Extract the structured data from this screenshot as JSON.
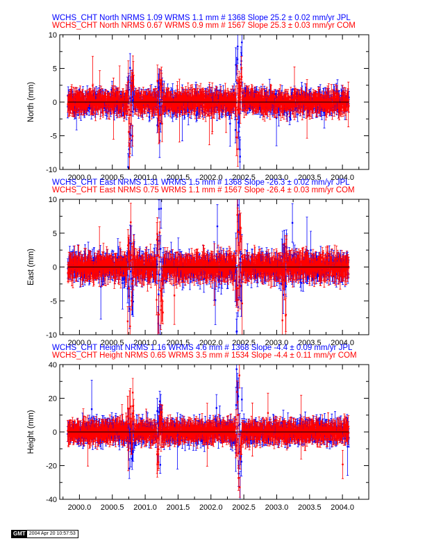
{
  "colors": {
    "jpl": "#0000ff",
    "com": "#ff0000",
    "axis": "#000000"
  },
  "footer": {
    "logo": "GMT",
    "timestamp": "2004 Apr 20 10:57:53"
  },
  "chart_data": [
    {
      "type": "scatter",
      "component": "North",
      "titles": [
        {
          "text": "WCHS_CHT North NRMS 1.09 WRMS  1.1 mm # 1368 Slope   25.2 ±  0.02 mm/yr JPL",
          "color": "#0000ff"
        },
        {
          "text": "WCHS_CHT North NRMS 0.67 WRMS  0.9 mm # 1567 Slope   25.3 ±  0.03 mm/yr COM",
          "color": "#ff0000"
        }
      ],
      "ylabel": "North (mm)",
      "xlim": [
        1999.7,
        2004.4
      ],
      "ylim": [
        -10,
        10
      ],
      "yticks": [
        -10,
        -5,
        0,
        5,
        10
      ],
      "xticks": [
        2000.0,
        2000.5,
        2001.0,
        2001.5,
        2002.0,
        2002.5,
        2003.0,
        2003.5,
        2004.0
      ],
      "xtick_labels": [
        "2000.0",
        "2000.5",
        "2001.0",
        "2001.5",
        "2002.0",
        "2002.5",
        "2003.0",
        "2003.5",
        "2004.0"
      ],
      "series": [
        {
          "name": "JPL",
          "color": "#0000ff",
          "x_range": [
            1999.82,
            2004.1
          ],
          "scatter": 1.3,
          "error": 1.2
        },
        {
          "name": "COM",
          "color": "#ff0000",
          "x_range": [
            1999.82,
            2004.1
          ],
          "scatter": 1.0,
          "error": 1.4
        }
      ],
      "outlier_bursts": [
        {
          "x": 2000.78,
          "amp": 8,
          "width": 0.05
        },
        {
          "x": 2001.22,
          "amp": 6,
          "width": 0.04
        },
        {
          "x": 2002.42,
          "amp": 10,
          "width": 0.05
        }
      ]
    },
    {
      "type": "scatter",
      "component": "East",
      "titles": [
        {
          "text": "WCHS_CHT East NRMS 1.31 WRMS  1.5 mm # 1368 Slope  -26.3 ±  0.02 mm/yr JPL",
          "color": "#0000ff"
        },
        {
          "text": "WCHS_CHT East NRMS 0.75 WRMS  1.1 mm # 1567 Slope  -26.4 ±  0.03 mm/yr COM",
          "color": "#ff0000"
        }
      ],
      "ylabel": "East (mm)",
      "xlim": [
        1999.7,
        2004.4
      ],
      "ylim": [
        -10,
        10
      ],
      "yticks": [
        -10,
        -5,
        0,
        5,
        10
      ],
      "xticks": [
        2000.0,
        2000.5,
        2001.0,
        2001.5,
        2002.0,
        2002.5,
        2003.0,
        2003.5,
        2004.0
      ],
      "xtick_labels": [
        "2000.0",
        "2000.5",
        "2001.0",
        "2001.5",
        "2002.0",
        "2002.5",
        "2003.0",
        "2003.5",
        "2004.0"
      ],
      "series": [
        {
          "name": "JPL",
          "color": "#0000ff",
          "x_range": [
            1999.82,
            2004.1
          ],
          "scatter": 1.6,
          "error": 1.4
        },
        {
          "name": "COM",
          "color": "#ff0000",
          "x_range": [
            1999.82,
            2004.1
          ],
          "scatter": 1.1,
          "error": 1.6
        }
      ],
      "outlier_bursts": [
        {
          "x": 2000.78,
          "amp": 9,
          "width": 0.05
        },
        {
          "x": 2001.22,
          "amp": 10,
          "width": 0.05
        },
        {
          "x": 2002.42,
          "amp": 10,
          "width": 0.05
        },
        {
          "x": 2003.12,
          "amp": 6,
          "width": 0.04
        }
      ]
    },
    {
      "type": "scatter",
      "component": "Height",
      "titles": [
        {
          "text": "WCHS_CHT Height NRMS 1.16 WRMS  4.6 mm # 1368 Slope   -4.4 ±  0.09 mm/yr JPL",
          "color": "#0000ff"
        },
        {
          "text": "WCHS_CHT Height NRMS 0.65 WRMS  3.5 mm # 1534 Slope   -4.4 ±  0.11 mm/yr COM",
          "color": "#ff0000"
        }
      ],
      "ylabel": "Height (mm)",
      "xlim": [
        1999.7,
        2004.4
      ],
      "ylim": [
        -40,
        40
      ],
      "yticks": [
        -40,
        -20,
        0,
        20,
        40
      ],
      "xticks": [
        2000.0,
        2000.5,
        2001.0,
        2001.5,
        2002.0,
        2002.5,
        2003.0,
        2003.5,
        2004.0
      ],
      "xtick_labels": [
        "2000.0",
        "2000.5",
        "2001.0",
        "2001.5",
        "2002.0",
        "2002.5",
        "2003.0",
        "2003.5",
        "2004.0"
      ],
      "series": [
        {
          "name": "JPL",
          "color": "#0000ff",
          "x_range": [
            1999.82,
            2004.1
          ],
          "scatter": 4.8,
          "error": 5.0
        },
        {
          "name": "COM",
          "color": "#ff0000",
          "x_range": [
            1999.82,
            2004.1
          ],
          "scatter": 3.5,
          "error": 5.5
        }
      ],
      "outlier_bursts": [
        {
          "x": 2000.78,
          "amp": 22,
          "width": 0.05
        },
        {
          "x": 2001.22,
          "amp": 25,
          "width": 0.04
        },
        {
          "x": 2002.42,
          "amp": 38,
          "width": 0.05
        }
      ]
    }
  ]
}
